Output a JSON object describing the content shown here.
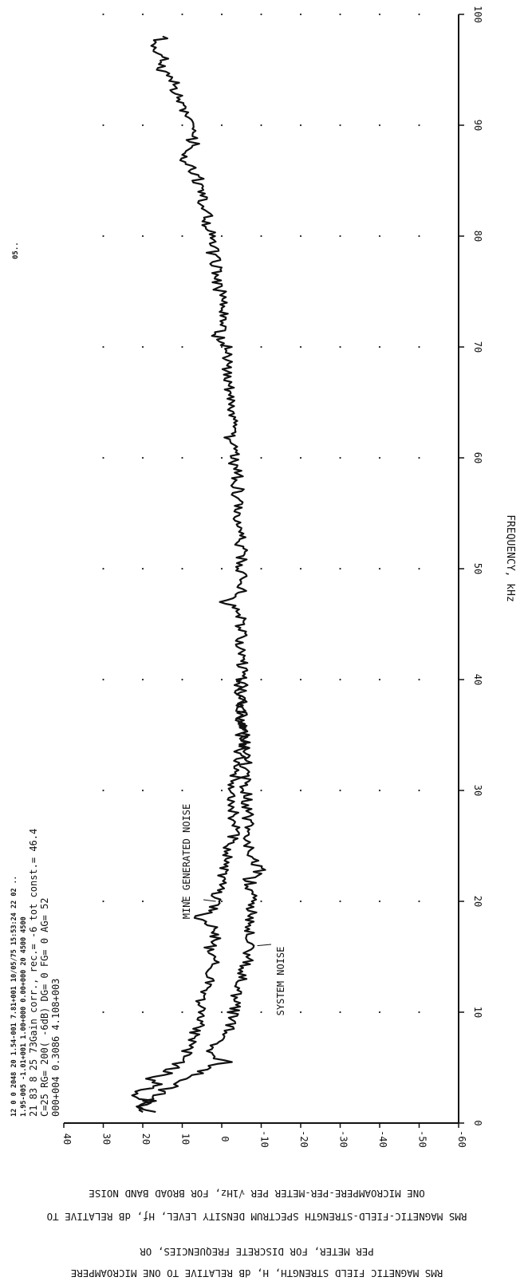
{
  "chart_data": {
    "type": "line",
    "title": "",
    "xlabel": "FREQUENCY, kHz",
    "ylabel_lines": [
      "RMS MAGNETIC FIELD STRENGTH, H, dB RELATIVE TO ONE MICROAMPERE",
      "PER METER, FOR DISCRETE FREQUENCIES, OR",
      "RMS MAGNETIC-FIELD-STRENGTH SPECTRUM DENSITY LEVEL, Hƒ, dB RELATIVE TO",
      "ONE MICROAMPERE-PER-METER PER √1Hz, FOR BROAD BAND NOISE"
    ],
    "xlim": [
      0,
      100
    ],
    "ylim": [
      -60,
      40
    ],
    "x_ticks": [
      "0",
      "10",
      "20",
      "30",
      "40",
      "50",
      "60",
      "70",
      "80",
      "90",
      "100"
    ],
    "y_ticks": [
      "40",
      "30",
      "20",
      "10",
      "0",
      "-10",
      "-20",
      "-30",
      "-40",
      "-50",
      "-60"
    ],
    "grid": "dots",
    "series": [
      {
        "name": "MINE GENERATED NOISE",
        "x": [
          1,
          1.5,
          2,
          2.5,
          3,
          3.5,
          4,
          4.5,
          5,
          6,
          7,
          8,
          9,
          10,
          12,
          14,
          16,
          17,
          18,
          18.5,
          19,
          20,
          21,
          22,
          23,
          24,
          25,
          26,
          28,
          30,
          32,
          34,
          36,
          38,
          39,
          40,
          42,
          44,
          46,
          47,
          48,
          50,
          52,
          54,
          55,
          56,
          58,
          60,
          62,
          64,
          66,
          68,
          70,
          71,
          72,
          74,
          76,
          78,
          80,
          82,
          84,
          86,
          87,
          88,
          90,
          92,
          94,
          95,
          96,
          97,
          98
        ],
        "y": [
          20,
          22,
          18,
          23,
          20,
          16,
          19,
          14,
          12,
          9,
          8,
          7,
          5,
          6,
          4,
          2,
          3,
          1,
          3,
          8,
          2,
          2,
          1,
          0,
          0,
          -1,
          -2,
          -3,
          -3,
          -3,
          -4,
          -5,
          -5,
          -5,
          -3,
          -5,
          -5,
          -5,
          -5,
          -1,
          -5,
          -5,
          -5,
          -4,
          -3,
          -4,
          -4,
          -3,
          -2,
          -3,
          -2,
          -1,
          -1,
          1,
          -1,
          0,
          1,
          2,
          3,
          4,
          5,
          7,
          10,
          7,
          8,
          11,
          12,
          16,
          14,
          17,
          15
        ]
      },
      {
        "name": "SYSTEM NOISE",
        "x": [
          1,
          1.5,
          2,
          2.5,
          3,
          3.5,
          4,
          4.5,
          5,
          5.5,
          6,
          7,
          8,
          9,
          10,
          12,
          14,
          16,
          18,
          20,
          22,
          23,
          24,
          26,
          28,
          30,
          32,
          34,
          36,
          38,
          40
        ],
        "y": [
          18,
          20,
          19,
          16,
          15,
          11,
          9,
          6,
          4,
          -1,
          3,
          2,
          0,
          -3,
          -3,
          -4,
          -6,
          -7,
          -7,
          -8,
          -7,
          -10,
          -7,
          -6,
          -7,
          -6,
          -6,
          -6,
          -5,
          -5,
          -5
        ]
      }
    ],
    "annotations": [
      {
        "text": "MINE GENERATED NOISE",
        "points_to": [
          20,
          1.5
        ]
      },
      {
        "text": "SYSTEM NOISE",
        "points_to": [
          16,
          -9
        ]
      }
    ],
    "header_lines": [
      "12  0  0 2048    20  1.54-001  7.81+001 10/05/75 15:53:24     22      02   ..",
      "1.95-005 -1.01+001 1.00+000  0.00+000      20     4500    4500",
      "21   83   8 25 73Gain corr.,   rec.=   -6 tot const.= 46.4",
      "C=25 RG=  200( -6dB) DG=    0 FG=    0 AG= 52",
      "000+004              0.3086             4.108+003"
    ],
    "margin_mark": "05.."
  }
}
